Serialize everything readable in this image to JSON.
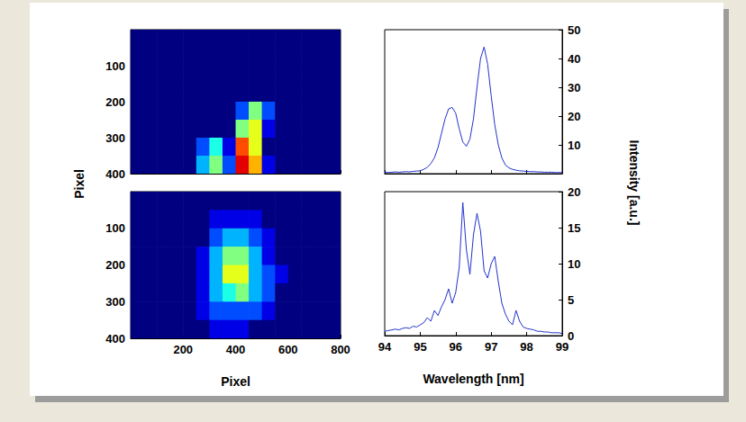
{
  "chart_data": [
    {
      "type": "heatmap",
      "ylabel": "Pixel",
      "x": [
        25,
        75,
        125,
        175,
        225,
        275,
        325,
        375,
        425,
        475,
        525,
        575,
        625,
        675,
        725,
        775
      ],
      "y": [
        25,
        75,
        125,
        175,
        225,
        275,
        325,
        375
      ],
      "z": [
        [
          0,
          0,
          0,
          0,
          0,
          0,
          0,
          0,
          0,
          0,
          0,
          0,
          0,
          0,
          0,
          0
        ],
        [
          0,
          0,
          0,
          0,
          0,
          0,
          0,
          0,
          0,
          0,
          0,
          0,
          0,
          0,
          0,
          0
        ],
        [
          0,
          0,
          0,
          0,
          0,
          0,
          0,
          0,
          0,
          0,
          0,
          0,
          0,
          0,
          0,
          0
        ],
        [
          0,
          0,
          0,
          0,
          0,
          0,
          0,
          0,
          0,
          0,
          0,
          0,
          0,
          0,
          0,
          0
        ],
        [
          0,
          0,
          0,
          0,
          0,
          0,
          0,
          0,
          2,
          5,
          2,
          0,
          0,
          0,
          0,
          0
        ],
        [
          0,
          0,
          0,
          0,
          0,
          0,
          0,
          0,
          5,
          6,
          1,
          0,
          0,
          0,
          0,
          0
        ],
        [
          0,
          0,
          0,
          0,
          0,
          2,
          4,
          1,
          8,
          6,
          0,
          0,
          0,
          0,
          0,
          0
        ],
        [
          0,
          0,
          0,
          0,
          0,
          3,
          5,
          2,
          9,
          7,
          1,
          0,
          0,
          0,
          0,
          0
        ]
      ],
      "zlim": [
        0,
        10
      ],
      "xlim": [
        0,
        800
      ],
      "xticks": [
        200,
        400,
        600,
        800
      ],
      "ylim": [
        0,
        400
      ],
      "yticks": [
        100,
        200,
        300,
        400
      ],
      "tick_labels": "y",
      "grid": false
    },
    {
      "type": "heatmap",
      "xlabel": "Pixel",
      "x": [
        25,
        75,
        125,
        175,
        225,
        275,
        325,
        375,
        425,
        475,
        525,
        575,
        625,
        675,
        725,
        775
      ],
      "y": [
        25,
        75,
        125,
        175,
        225,
        275,
        325,
        375
      ],
      "z": [
        [
          0,
          0,
          0,
          0,
          0,
          0,
          0,
          0,
          0,
          0,
          0,
          0,
          0,
          0,
          0,
          0
        ],
        [
          0,
          0,
          0,
          0,
          0,
          0,
          1,
          1,
          1,
          1,
          0,
          0,
          0,
          0,
          0,
          0
        ],
        [
          0,
          0,
          0,
          0,
          0,
          0,
          2,
          3,
          3,
          2,
          1,
          0,
          0,
          0,
          0,
          0
        ],
        [
          0,
          0,
          0,
          0,
          0,
          1,
          3,
          5,
          5,
          3,
          1,
          0,
          0,
          0,
          0,
          0
        ],
        [
          0,
          0,
          0,
          0,
          0,
          1,
          3,
          6,
          6,
          3,
          2,
          1,
          0,
          0,
          0,
          0
        ],
        [
          0,
          0,
          0,
          0,
          0,
          1,
          3,
          4,
          5,
          3,
          2,
          0,
          0,
          0,
          0,
          0
        ],
        [
          0,
          0,
          0,
          0,
          0,
          1,
          2,
          2,
          2,
          2,
          1,
          0,
          0,
          0,
          0,
          0
        ],
        [
          0,
          0,
          0,
          0,
          0,
          0,
          1,
          1,
          1,
          0,
          0,
          0,
          0,
          0,
          0,
          0
        ]
      ],
      "zlim": [
        0,
        10
      ],
      "xlim": [
        0,
        800
      ],
      "xticks": [
        200,
        400,
        600,
        800
      ],
      "ylim": [
        0,
        400
      ],
      "yticks": [
        100,
        200,
        300,
        400
      ],
      "grid": false
    },
    {
      "type": "line",
      "color": "#2233cc",
      "x": [
        94.0,
        94.1,
        94.2,
        94.3,
        94.4,
        94.5,
        94.6,
        94.7,
        94.8,
        94.9,
        95.0,
        95.1,
        95.2,
        95.3,
        95.4,
        95.5,
        95.6,
        95.7,
        95.8,
        95.9,
        96.0,
        96.1,
        96.2,
        96.3,
        96.4,
        96.5,
        96.6,
        96.7,
        96.8,
        96.9,
        97.0,
        97.1,
        97.2,
        97.3,
        97.4,
        97.5,
        97.6,
        97.7,
        97.8,
        97.9,
        98.0,
        98.1,
        98.2,
        98.3,
        98.4,
        98.5,
        98.6,
        98.7,
        98.8,
        98.9,
        99.0
      ],
      "values": [
        0.5,
        0.4,
        0.5,
        0.6,
        0.5,
        0.6,
        0.7,
        0.6,
        0.8,
        0.9,
        1.0,
        1.5,
        2.2,
        3.5,
        5.5,
        9,
        14,
        19,
        22.5,
        23,
        21,
        15.5,
        11,
        9.5,
        12,
        19,
        30,
        40,
        44,
        38,
        27,
        17,
        10,
        5.5,
        3,
        2,
        1.5,
        1.2,
        1,
        0.9,
        0.8,
        0.7,
        0.7,
        0.6,
        0.6,
        0.5,
        0.5,
        0.5,
        0.4,
        0.4,
        0.4
      ],
      "xlim": [
        94,
        99
      ],
      "xticks": [
        94,
        95,
        96,
        97,
        98,
        99
      ],
      "ylim": [
        0,
        50
      ],
      "yticks": [
        10,
        20,
        30,
        40,
        50
      ],
      "tick_labels": "y",
      "grid": false
    },
    {
      "type": "line",
      "color": "#2233cc",
      "xlabel": "Wavelength [nm]",
      "ylabel": "Intensity [a.u.]",
      "x": [
        94.0,
        94.1,
        94.2,
        94.3,
        94.4,
        94.5,
        94.6,
        94.7,
        94.8,
        94.9,
        95.0,
        95.1,
        95.2,
        95.3,
        95.4,
        95.5,
        95.6,
        95.7,
        95.8,
        95.9,
        96.0,
        96.1,
        96.2,
        96.3,
        96.4,
        96.5,
        96.6,
        96.7,
        96.8,
        96.9,
        97.0,
        97.1,
        97.2,
        97.3,
        97.4,
        97.5,
        97.6,
        97.7,
        97.8,
        97.9,
        98.0,
        98.1,
        98.2,
        98.3,
        98.4,
        98.5,
        98.6,
        98.7,
        98.8,
        98.9,
        99.0
      ],
      "values": [
        0.6,
        0.7,
        0.8,
        0.9,
        0.8,
        1.0,
        1.1,
        1.0,
        1.3,
        1.2,
        1.5,
        1.8,
        2.5,
        2.0,
        3.5,
        2.8,
        4.0,
        5.0,
        6.5,
        4.5,
        6.0,
        9.5,
        18.5,
        12.0,
        8.5,
        14.0,
        17.0,
        14.5,
        9.0,
        8.0,
        10.0,
        11.0,
        7.5,
        4.5,
        3.0,
        2.0,
        1.5,
        3.5,
        2.0,
        1.2,
        1.0,
        0.9,
        0.8,
        0.6,
        0.6,
        0.5,
        0.5,
        0.4,
        0.4,
        0.4,
        0.3
      ],
      "xlim": [
        94,
        99
      ],
      "xticks": [
        94,
        95,
        96,
        97,
        98,
        99
      ],
      "ylim": [
        0,
        20
      ],
      "yticks": [
        0,
        5,
        10,
        15,
        20
      ],
      "grid": false
    }
  ]
}
